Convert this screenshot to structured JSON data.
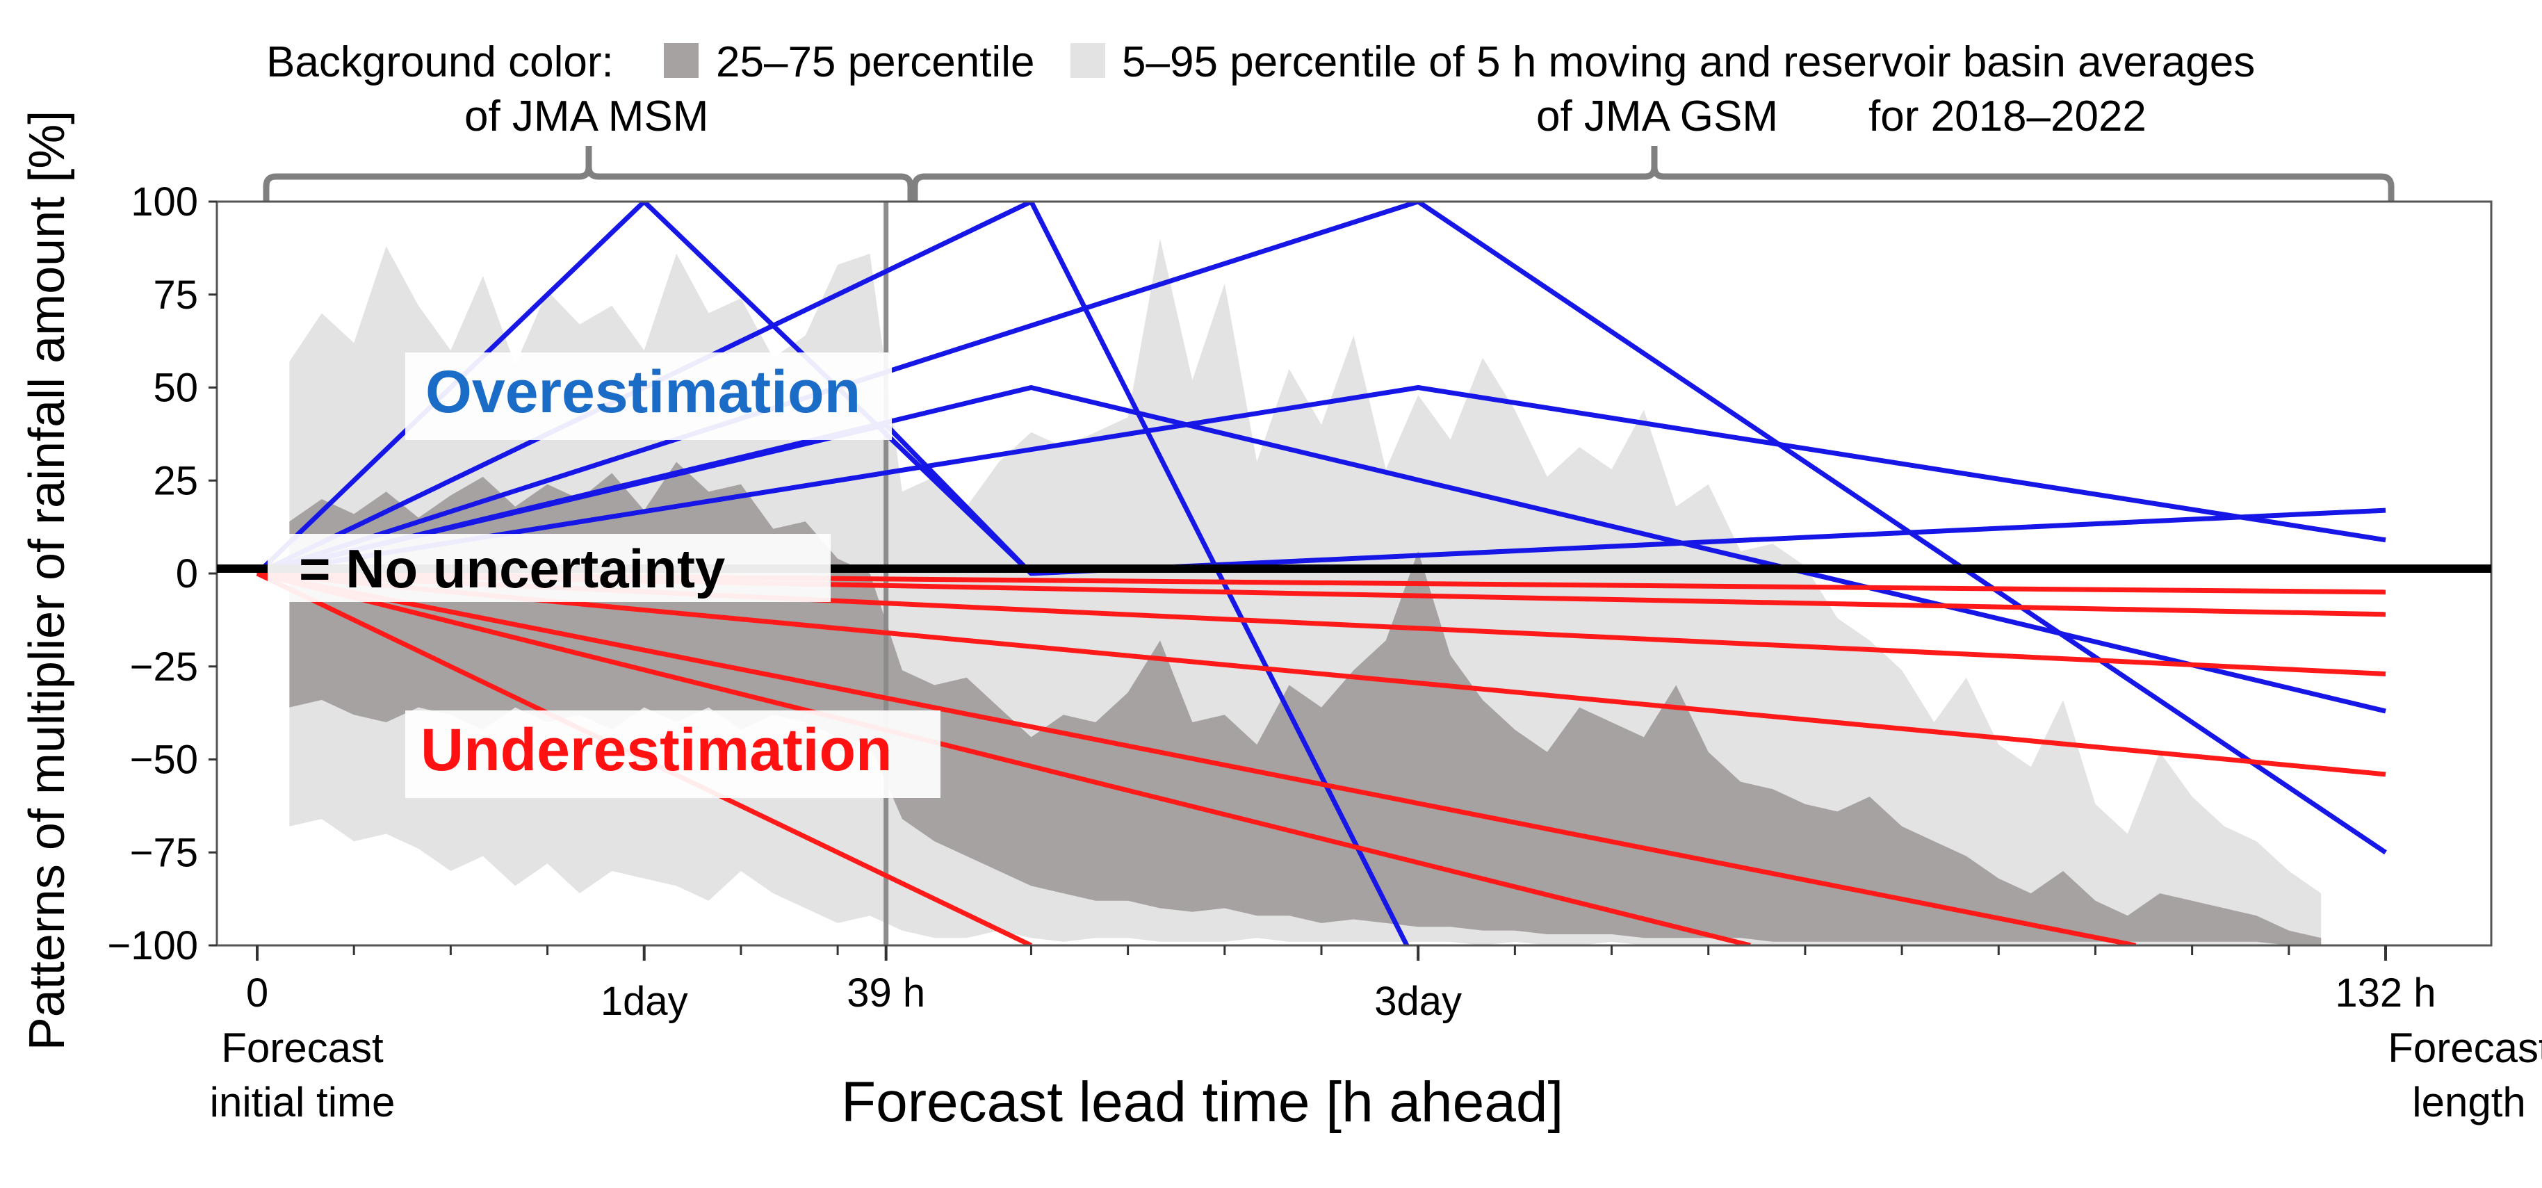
{
  "chart_data": {
    "type": "line",
    "title": "",
    "xlabel": "Forecast lead time [h ahead]",
    "ylabel": "Patterns of multiplier of rainfall amount [%]",
    "xlim": [
      0,
      132
    ],
    "ylim": [
      -100,
      100
    ],
    "y_ticks": [
      100,
      75,
      50,
      25,
      0,
      -25,
      -50,
      -75,
      -100
    ],
    "y_tick_labels": [
      "100",
      "75",
      "50",
      "25",
      "0",
      "−25",
      "−50",
      "−75",
      "−100"
    ],
    "x_tick_labels": [
      {
        "x": 0,
        "label": "0",
        "sublabel_lines": [
          "Forecast",
          "initial time"
        ]
      },
      {
        "x": 24,
        "label": "1day",
        "sublabel_lines": []
      },
      {
        "x": 39,
        "label": "39 h",
        "sublabel_lines": []
      },
      {
        "x": 72,
        "label": "3day",
        "sublabel_lines": []
      },
      {
        "x": 132,
        "label": "132 h",
        "sublabel_lines": [
          "Forecast",
          "length"
        ]
      }
    ],
    "minor_ticks": [
      6,
      12,
      18,
      30,
      36,
      48,
      54,
      60,
      66,
      78,
      84,
      90,
      96,
      102,
      108,
      114,
      120,
      126
    ],
    "legend": {
      "prefix": "Background color:",
      "items": [
        {
          "label": "25–75 percentile",
          "color": "#a7a2a2"
        },
        {
          "label": "5–95 percentile of 5 h moving and reservoir basin averages",
          "color": "#e3e3e3"
        }
      ]
    },
    "brackets": [
      {
        "label": "of JMA MSM",
        "x_start": 0,
        "x_end": 39
      },
      {
        "label": "of JMA GSM",
        "x_start": 39,
        "x_end": 132
      },
      {
        "label": "for 2018–2022"
      }
    ],
    "vline_x": 39,
    "series": [
      {
        "name": "over-peak-24h",
        "color": "#1616e6",
        "x": [
          0,
          24,
          48
        ],
        "y": [
          0,
          100,
          0
        ]
      },
      {
        "name": "over-peak-48h",
        "color": "#1616e6",
        "x": [
          0,
          48,
          71.3
        ],
        "y": [
          0,
          100,
          -100
        ]
      },
      {
        "name": "over-peak-72h",
        "color": "#1616e6",
        "x": [
          0,
          72,
          132
        ],
        "y": [
          0,
          100,
          -75
        ]
      },
      {
        "name": "over-to-50-at-48h",
        "color": "#1616e6",
        "x": [
          0,
          48,
          132
        ],
        "y": [
          0,
          50,
          -37
        ]
      },
      {
        "name": "over-peak-72h-to-50",
        "color": "#1616e6",
        "x": [
          0,
          72,
          132
        ],
        "y": [
          0,
          50,
          9
        ]
      },
      {
        "name": "over-steep-from-39h",
        "color": "#1616e6",
        "x": [
          0,
          39,
          48,
          132
        ],
        "y": [
          0,
          40,
          0,
          17
        ]
      },
      {
        "name": "under-1",
        "color": "#ff1a1a",
        "x": [
          0,
          132
        ],
        "y": [
          0,
          -5
        ]
      },
      {
        "name": "under-2",
        "color": "#ff1a1a",
        "x": [
          0,
          132
        ],
        "y": [
          0,
          -11
        ]
      },
      {
        "name": "under-3",
        "color": "#ff1a1a",
        "x": [
          0,
          132
        ],
        "y": [
          0,
          -27
        ]
      },
      {
        "name": "under-4",
        "color": "#ff1a1a",
        "x": [
          0,
          132
        ],
        "y": [
          0,
          -54
        ]
      },
      {
        "name": "under-5",
        "color": "#ff1a1a",
        "x": [
          0,
          116.5
        ],
        "y": [
          0,
          -100
        ]
      },
      {
        "name": "under-6",
        "color": "#ff1a1a",
        "x": [
          0,
          92.6
        ],
        "y": [
          0,
          -100
        ]
      },
      {
        "name": "under-7",
        "color": "#ff1a1a",
        "x": [
          0,
          48
        ],
        "y": [
          0,
          -100
        ]
      }
    ],
    "bands": [
      {
        "name": "5–95 percentile",
        "color": "#e3e3e3",
        "x": [
          2,
          4,
          6,
          8,
          10,
          12,
          14,
          16,
          18,
          20,
          22,
          24,
          26,
          28,
          30,
          32,
          34,
          36,
          38,
          40,
          42,
          44,
          46,
          48,
          50,
          52,
          54,
          56,
          58,
          60,
          62,
          64,
          66,
          68,
          70,
          72,
          74,
          76,
          78,
          80,
          82,
          84,
          86,
          88,
          90,
          92,
          94,
          96,
          98,
          100,
          102,
          104,
          106,
          108,
          110,
          112,
          114,
          116,
          118,
          120,
          122,
          124,
          126,
          128
        ],
        "upper": [
          57,
          70,
          62,
          88,
          72,
          60,
          80,
          56,
          76,
          67,
          72,
          60,
          86,
          70,
          74,
          58,
          64,
          83,
          86,
          22,
          26,
          18,
          30,
          38,
          34,
          38,
          42,
          90,
          52,
          78,
          30,
          55,
          40,
          64,
          28,
          48,
          36,
          58,
          44,
          26,
          34,
          28,
          44,
          18,
          24,
          6,
          8,
          2,
          -12,
          -18,
          -26,
          -40,
          -28,
          -46,
          -52,
          -34,
          -62,
          -70,
          -48,
          -60,
          -68,
          -72,
          -80,
          -86
        ],
        "lower": [
          -68,
          -66,
          -72,
          -70,
          -74,
          -80,
          -76,
          -84,
          -78,
          -86,
          -80,
          -82,
          -84,
          -88,
          -80,
          -86,
          -90,
          -94,
          -92,
          -96,
          -98,
          -98,
          -96,
          -98,
          -99,
          -98,
          -98,
          -99,
          -99,
          -99,
          -98,
          -99,
          -99,
          -99,
          -99,
          -99,
          -99,
          -100,
          -99,
          -100,
          -100,
          -99,
          -100,
          -100,
          -100,
          -100,
          -100,
          -100,
          -100,
          -100,
          -100,
          -100,
          -100,
          -100,
          -100,
          -100,
          -100,
          -100,
          -100,
          -100,
          -100,
          -100,
          -100,
          -100
        ]
      },
      {
        "name": "25–75 percentile",
        "color": "#a7a2a2",
        "x": [
          2,
          4,
          6,
          8,
          10,
          12,
          14,
          16,
          18,
          20,
          22,
          24,
          26,
          28,
          30,
          32,
          34,
          36,
          38,
          40,
          42,
          44,
          46,
          48,
          50,
          52,
          54,
          56,
          58,
          60,
          62,
          64,
          66,
          68,
          70,
          72,
          74,
          76,
          78,
          80,
          82,
          84,
          86,
          88,
          90,
          92,
          94,
          96,
          98,
          100,
          102,
          104,
          106,
          108,
          110,
          112,
          114,
          116,
          118,
          120,
          122,
          124,
          126,
          128
        ],
        "upper": [
          14,
          20,
          16,
          22,
          15,
          21,
          26,
          18,
          24,
          20,
          27,
          17,
          30,
          22,
          24,
          12,
          14,
          4,
          0,
          -26,
          -30,
          -28,
          -36,
          -44,
          -38,
          -40,
          -32,
          -18,
          -40,
          -38,
          -46,
          -30,
          -36,
          -26,
          -18,
          6,
          -22,
          -34,
          -42,
          -48,
          -36,
          -40,
          -44,
          -30,
          -48,
          -56,
          -58,
          -62,
          -64,
          -60,
          -68,
          -72,
          -76,
          -82,
          -86,
          -80,
          -88,
          -92,
          -86,
          -88,
          -90,
          -92,
          -96,
          -98
        ],
        "lower": [
          -36,
          -34,
          -38,
          -40,
          -36,
          -38,
          -42,
          -36,
          -40,
          -38,
          -42,
          -36,
          -40,
          -36,
          -42,
          -38,
          -40,
          -44,
          -46,
          -66,
          -72,
          -76,
          -80,
          -84,
          -86,
          -88,
          -88,
          -90,
          -91,
          -90,
          -92,
          -92,
          -94,
          -93,
          -94,
          -95,
          -95,
          -96,
          -96,
          -97,
          -97,
          -97,
          -98,
          -98,
          -98,
          -98,
          -99,
          -99,
          -99,
          -99,
          -99,
          -99,
          -99,
          -99,
          -99,
          -99,
          -99,
          -99,
          -99,
          -99,
          -99,
          -99,
          -100,
          -100
        ]
      }
    ],
    "annotations": [
      {
        "text": "Overestimation",
        "color": "#1a6cc7"
      },
      {
        "text": "= No uncertainty",
        "color": "#000000"
      },
      {
        "text": "Underestimation",
        "color": "#ff1111"
      }
    ]
  }
}
